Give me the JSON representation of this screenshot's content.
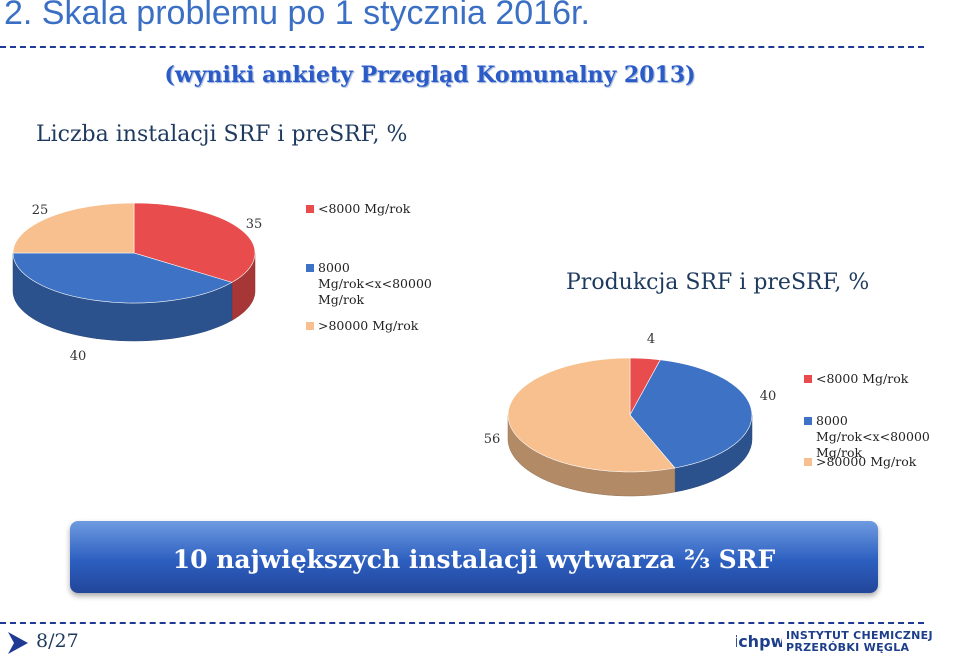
{
  "header": {
    "title": "2. Skala problemu po 1 stycznia 2016r.",
    "subtitle": "(wyniki ankiety Przegląd Komunalny 2013)"
  },
  "chart_data": [
    {
      "type": "pie",
      "title": "Liczba instalacji SRF i preSRF, %",
      "categories": [
        "<8000 Mg/rok",
        "8000 Mg/rok<x<80000 Mg/rok",
        ">80000 Mg/rok"
      ],
      "values": [
        35,
        40,
        25
      ],
      "value_labels": [
        "35",
        "40",
        "25"
      ],
      "colors": [
        "#e84c4c",
        "#3d72c4",
        "#f7c08e"
      ],
      "legend_position": "right"
    },
    {
      "type": "pie",
      "title": "Produkcja SRF i preSRF, %",
      "categories": [
        "<8000 Mg/rok",
        "8000 Mg/rok<x<80000 Mg/rok",
        ">80000 Mg/rok"
      ],
      "values": [
        4,
        40,
        56
      ],
      "value_labels": [
        "4",
        "40",
        "56"
      ],
      "colors": [
        "#e84c4c",
        "#3d72c4",
        "#f7c08e"
      ],
      "legend_position": "right"
    }
  ],
  "legend1": {
    "items": [
      "<8000 Mg/rok",
      "8000 Mg/rok<x<80000 Mg/rok",
      ">80000 Mg/rok"
    ]
  },
  "legend2": {
    "items": [
      "<8000 Mg/rok",
      "8000 Mg/rok<x<80000 Mg/rok",
      ">80000 Mg/rok"
    ]
  },
  "banner": {
    "text": "10 największych instalacji wytwarza ⅔ SRF"
  },
  "footer": {
    "page": "8/27",
    "org_line1": "INSTYTUT CHEMICZNEJ",
    "org_line2": "PRZERÓBKI WĘGLA",
    "org_logo_text": "ichpw"
  },
  "colors": {
    "title": "#3a6fc4",
    "accent_dark": "#1f3a93",
    "slice_red": "#e84c4c",
    "slice_blue": "#3d72c4",
    "slice_peach": "#f7c08e"
  }
}
